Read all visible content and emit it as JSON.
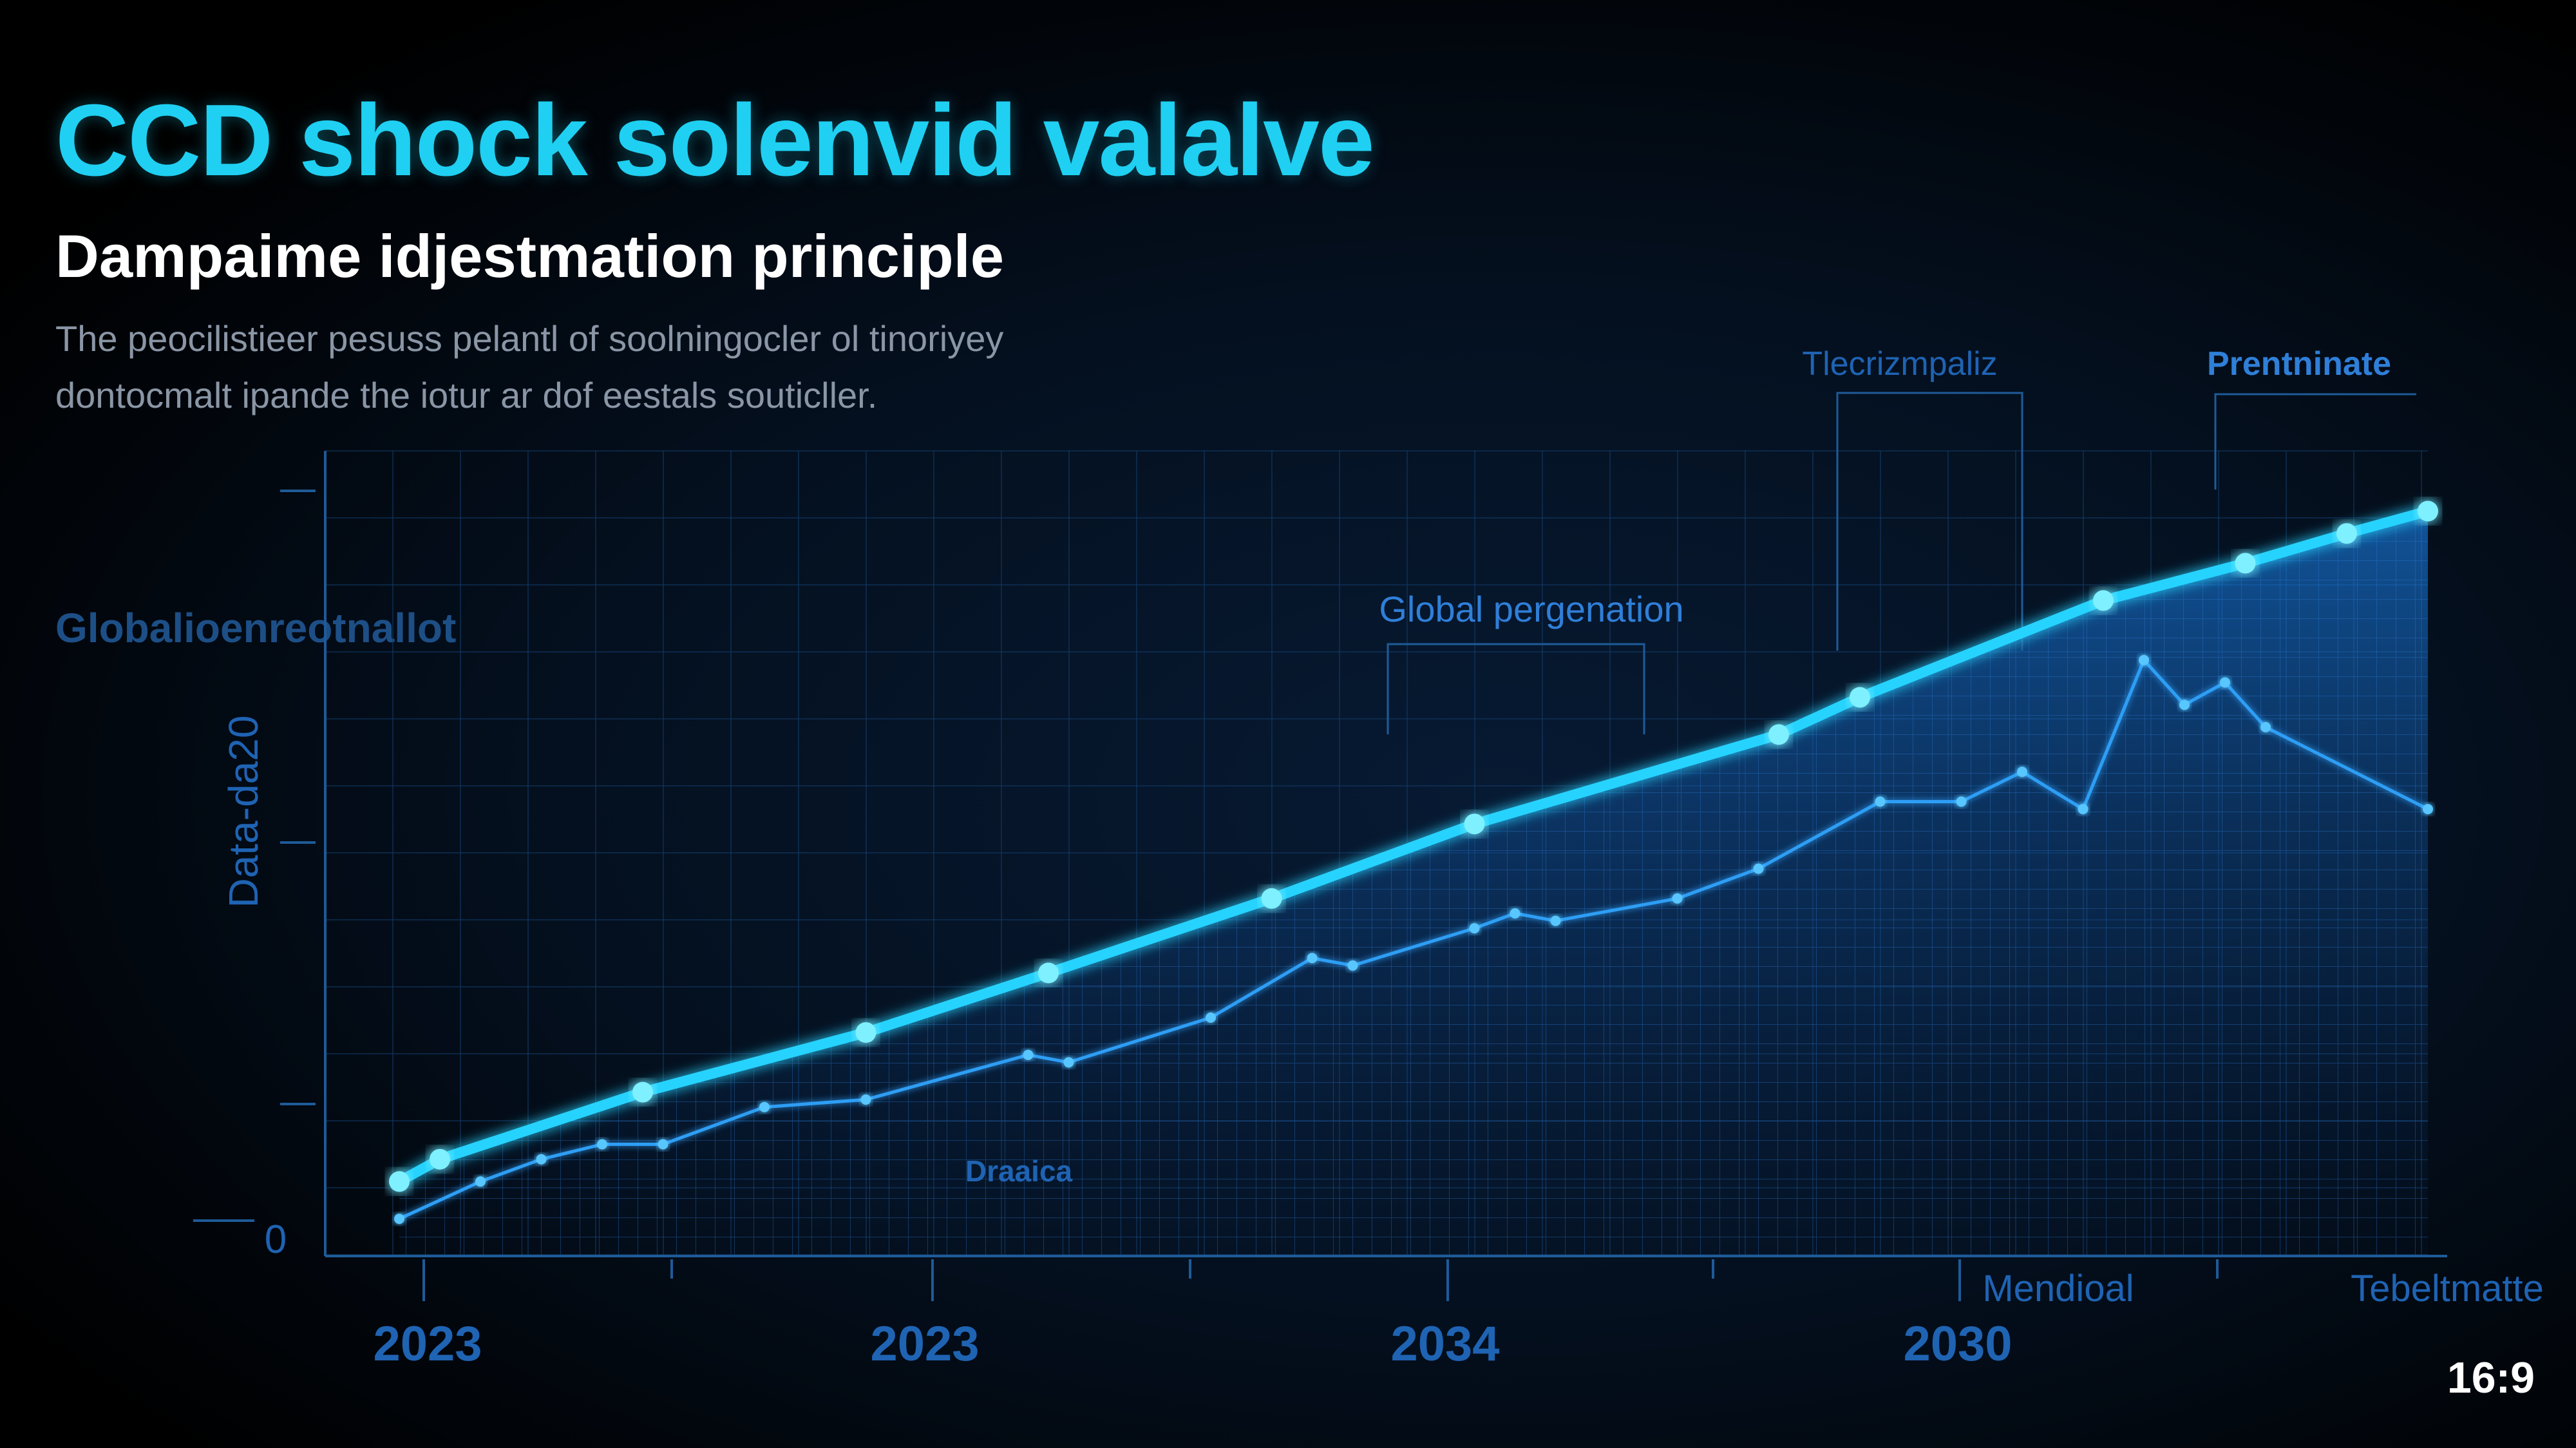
{
  "title": "CCD shock solenvid valalve",
  "subtitle": "Dampaime idjestmation principle",
  "description": [
    "The peocilistieer pesuss pelantl of soolningocler ol tinoriyey",
    "dontocmalt ipande the iotur ar dof eestals souticller."
  ],
  "side_label": "Globalioenreotnallot",
  "aspect_badge": "16:9",
  "colors": {
    "background": "#000000",
    "accent": "#1fd0f2",
    "primary_line": "#27d3ff",
    "secondary_line": "#2f9ef5",
    "grid": "#123a66",
    "axis": "#1e5b99",
    "tick_text": "#1f63b3",
    "annotation": "#2f7fd8"
  },
  "chart_data": {
    "type": "line",
    "ylabel": "Data-da20",
    "y_tick_labels": [
      "0"
    ],
    "x_tick_labels": [
      "2023",
      "2023",
      "2034",
      "2030"
    ],
    "grid": true,
    "fill_under_primary": true,
    "annotations": [
      {
        "text": "Global pergenation"
      },
      {
        "text": "Tlecrizmpaliz"
      },
      {
        "text": "Prentninate"
      },
      {
        "text": "Draaica"
      },
      {
        "text": "Mendioal"
      },
      {
        "text": "Tebeltmatte"
      }
    ],
    "series": [
      {
        "style": "primary",
        "x": [
          0.0,
          0.02,
          0.12,
          0.23,
          0.32,
          0.43,
          0.53,
          0.68,
          0.72,
          0.84,
          0.91,
          0.96,
          1.0
        ],
        "y": [
          0.1,
          0.13,
          0.22,
          0.3,
          0.38,
          0.48,
          0.58,
          0.7,
          0.75,
          0.88,
          0.93,
          0.97,
          1.0
        ]
      },
      {
        "style": "secondary",
        "x": [
          0.0,
          0.04,
          0.07,
          0.1,
          0.13,
          0.18,
          0.23,
          0.31,
          0.33,
          0.4,
          0.45,
          0.47,
          0.53,
          0.55,
          0.57,
          0.63,
          0.67,
          0.73,
          0.77,
          0.8,
          0.83,
          0.86,
          0.88,
          0.9,
          0.92,
          1.0
        ],
        "y": [
          0.05,
          0.1,
          0.13,
          0.15,
          0.15,
          0.2,
          0.21,
          0.27,
          0.26,
          0.32,
          0.4,
          0.39,
          0.44,
          0.46,
          0.45,
          0.48,
          0.52,
          0.61,
          0.61,
          0.65,
          0.6,
          0.8,
          0.74,
          0.77,
          0.71,
          0.6
        ]
      }
    ],
    "xlim": [
      0,
      1
    ],
    "ylim": [
      0,
      1.15
    ]
  }
}
